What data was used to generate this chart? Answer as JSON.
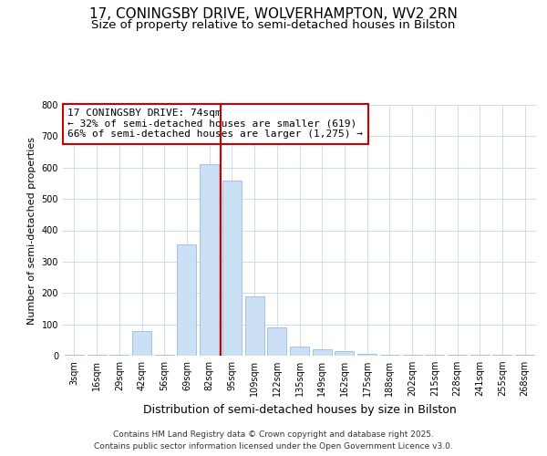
{
  "title_line1": "17, CONINGSBY DRIVE, WOLVERHAMPTON, WV2 2RN",
  "title_line2": "Size of property relative to semi-detached houses in Bilston",
  "xlabel": "Distribution of semi-detached houses by size in Bilston",
  "ylabel": "Number of semi-detached properties",
  "categories": [
    "3sqm",
    "16sqm",
    "29sqm",
    "42sqm",
    "56sqm",
    "69sqm",
    "82sqm",
    "95sqm",
    "109sqm",
    "122sqm",
    "135sqm",
    "149sqm",
    "162sqm",
    "175sqm",
    "188sqm",
    "202sqm",
    "215sqm",
    "228sqm",
    "241sqm",
    "255sqm",
    "268sqm"
  ],
  "values": [
    2,
    3,
    3,
    80,
    3,
    355,
    610,
    560,
    188,
    90,
    28,
    20,
    15,
    5,
    3,
    3,
    3,
    3,
    2,
    2,
    2
  ],
  "bar_color": "#cce0f5",
  "bar_edge_color": "#99bbdd",
  "vline_color": "#cc0000",
  "vline_pos": 6.5,
  "annotation_title": "17 CONINGSBY DRIVE: 74sqm",
  "annotation_line1": "← 32% of semi-detached houses are smaller (619)",
  "annotation_line2": "66% of semi-detached houses are larger (1,275) →",
  "annotation_box_color": "#ffffff",
  "annotation_box_edge": "#cc0000",
  "ylim": [
    0,
    800
  ],
  "yticks": [
    0,
    100,
    200,
    300,
    400,
    500,
    600,
    700,
    800
  ],
  "footer_line1": "Contains HM Land Registry data © Crown copyright and database right 2025.",
  "footer_line2": "Contains public sector information licensed under the Open Government Licence v3.0.",
  "bg_color": "#ffffff",
  "grid_color": "#ccddee",
  "title1_fontsize": 11,
  "title2_fontsize": 9.5,
  "xlabel_fontsize": 9,
  "ylabel_fontsize": 8,
  "tick_fontsize": 7,
  "annotation_fontsize": 8,
  "footer_fontsize": 6.5
}
